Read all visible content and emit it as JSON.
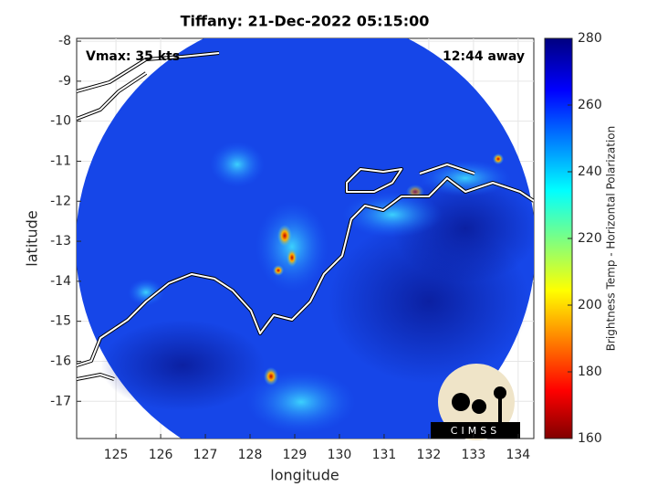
{
  "title": "Tiffany: 21-Dec-2022 05:15:00",
  "annotations": {
    "vmax": "Vmax: 35 kts",
    "away": "12:44 away"
  },
  "map": {
    "xlabel": "longitude",
    "ylabel": "latitude",
    "xlim": [
      124.12,
      134.35
    ],
    "xticks": [
      125,
      126,
      127,
      128,
      129,
      130,
      131,
      132,
      133,
      134
    ],
    "ylim": [
      -17.93,
      -7.93
    ],
    "yticks": [
      -8,
      -9,
      -10,
      -11,
      -12,
      -13,
      -14,
      -15,
      -16,
      -17
    ]
  },
  "colorbar": {
    "label": "Brightness Temp - Horizontal Polarization",
    "lim": [
      160,
      280
    ],
    "ticks": [
      160,
      180,
      200,
      220,
      240,
      260,
      280
    ]
  },
  "logo": "CIMSS"
}
